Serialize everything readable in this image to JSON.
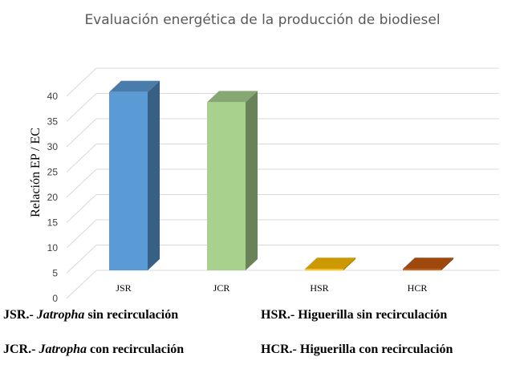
{
  "chart_data": {
    "type": "bar",
    "title": "Evaluación energética de la producción de biodiesel",
    "ylabel": "Relación EP / EC",
    "xlabel": "",
    "categories": [
      "JSR",
      "JCR",
      "HSR",
      "HCR"
    ],
    "values": [
      37.5,
      35.5,
      2.5,
      2.5
    ],
    "ylim": [
      0,
      40
    ],
    "yticks": [
      0,
      5,
      10,
      15,
      20,
      25,
      30,
      35,
      40
    ],
    "grid": true,
    "style": "3d-column",
    "colors": {
      "JSR": "#5b9bd5",
      "JCR": "#a9d18e",
      "HSR": "#ffc000",
      "HCR": "#c55a11"
    }
  },
  "legend_notes": [
    {
      "code": "JSR.- ",
      "genus": "Jatropha",
      "desc": " sin recirculación"
    },
    {
      "code": "HSR.- ",
      "genus": "",
      "desc": "Higuerilla sin recirculación"
    },
    {
      "code": "JCR.- ",
      "genus": "Jatropha",
      "desc": " con recirculación"
    },
    {
      "code": "HCR.- ",
      "genus": "",
      "desc": "Higuerilla con recirculación"
    }
  ]
}
